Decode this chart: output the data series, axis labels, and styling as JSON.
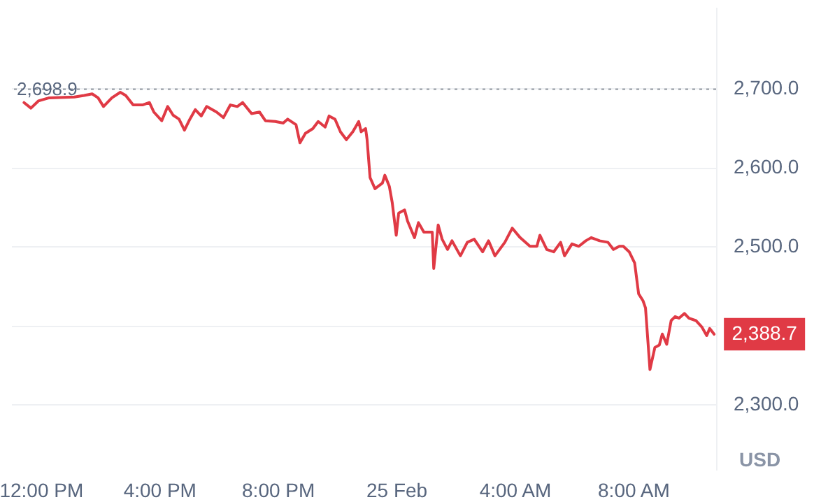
{
  "chart_data": {
    "type": "line",
    "ylabel": "USD",
    "x": [
      "--02-24T11:26",
      "--02-24T11:40",
      "--02-24T11:55",
      "--02-24T12:17",
      "--02-24T13:08",
      "--02-24T13:28",
      "--02-24T13:44",
      "--02-24T13:56",
      "--02-24T14:07",
      "--02-24T14:24",
      "--02-24T14:41",
      "--02-24T14:52",
      "--02-24T15:07",
      "--02-24T15:26",
      "--02-24T15:40",
      "--02-24T15:49",
      "--02-24T16:05",
      "--02-24T16:17",
      "--02-24T16:28",
      "--02-24T16:40",
      "--02-24T16:51",
      "--02-24T17:02",
      "--02-24T17:13",
      "--02-24T17:25",
      "--02-24T17:36",
      "--02-24T17:56",
      "--02-24T18:10",
      "--02-24T18:24",
      "--02-24T18:38",
      "--02-24T18:49",
      "--02-24T19:07",
      "--02-24T19:23",
      "--02-24T19:35",
      "--02-24T19:55",
      "--02-24T20:11",
      "--02-24T20:20",
      "--02-24T20:37",
      "--02-24T20:45",
      "--02-24T20:56",
      "--02-24T21:11",
      "--02-24T21:22",
      "--02-24T21:36",
      "--02-24T21:44",
      "--02-24T21:56",
      "--02-24T22:07",
      "--02-24T22:19",
      "--02-24T22:32",
      "--02-24T22:44",
      "--02-24T22:49",
      "--02-24T22:58",
      "--02-24T23:01",
      "--02-24T23:07",
      "--02-24T23:17",
      "--02-24T23:32",
      "--02-24T23:37",
      "--02-24T23:46",
      "--02-24T23:52",
      "--02-25T00:00",
      "--02-25T00:05",
      "--02-25T00:17",
      "--02-25T00:23",
      "--02-25T00:37",
      "--02-25T00:45",
      "--02-25T00:56",
      "--02-25T01:13",
      "--02-25T01:16",
      "--02-25T01:25",
      "--02-25T01:33",
      "--02-25T01:44",
      "--02-25T01:53",
      "--02-25T02:10",
      "--02-25T02:24",
      "--02-25T02:38",
      "--02-25T02:55",
      "--02-25T03:07",
      "--02-25T03:20",
      "--02-25T03:40",
      "--02-25T03:55",
      "--02-25T04:11",
      "--02-25T04:31",
      "--02-25T04:45",
      "--02-25T04:51",
      "--02-25T05:05",
      "--02-25T05:19",
      "--02-25T05:33",
      "--02-25T05:41",
      "--02-25T05:56",
      "--02-25T06:10",
      "--02-25T06:24",
      "--02-25T06:35",
      "--02-25T06:52",
      "--02-25T07:09",
      "--02-25T07:20",
      "--02-25T07:32",
      "--02-25T07:40",
      "--02-25T07:52",
      "--02-25T08:03",
      "--02-25T08:11",
      "--02-25T08:20",
      "--02-25T08:25",
      "--02-25T08:34",
      "--02-25T08:44",
      "--02-25T08:53",
      "--02-25T08:59",
      "--02-25T09:08",
      "--02-25T09:17",
      "--02-25T09:25",
      "--02-25T09:33",
      "--02-25T09:44",
      "--02-25T09:53",
      "--02-25T10:07",
      "--02-25T10:19",
      "--02-25T10:29",
      "--02-25T10:35",
      "--02-25T10:44"
    ],
    "series": [
      {
        "color": "#e03a45",
        "values": [
          2682,
          2675,
          2684,
          2688,
          2689,
          2691,
          2693,
          2688,
          2677,
          2688,
          2695,
          2691,
          2679,
          2679,
          2682,
          2670,
          2659,
          2677,
          2666,
          2661,
          2647,
          2661,
          2673,
          2665,
          2677,
          2670,
          2663,
          2679,
          2677,
          2682,
          2668,
          2670,
          2659,
          2658,
          2656,
          2661,
          2654,
          2631,
          2643,
          2649,
          2658,
          2651,
          2665,
          2661,
          2645,
          2635,
          2645,
          2658,
          2645,
          2649,
          2635,
          2587,
          2573,
          2580,
          2590,
          2576,
          2555,
          2514,
          2542,
          2546,
          2532,
          2511,
          2530,
          2518,
          2518,
          2472,
          2527,
          2509,
          2496,
          2507,
          2488,
          2505,
          2509,
          2493,
          2507,
          2488,
          2505,
          2523,
          2511,
          2500,
          2500,
          2514,
          2496,
          2493,
          2505,
          2488,
          2503,
          2500,
          2507,
          2511,
          2507,
          2505,
          2496,
          2500,
          2500,
          2493,
          2479,
          2440,
          2431,
          2422,
          2344,
          2372,
          2375,
          2389,
          2376,
          2406,
          2411,
          2409,
          2415,
          2409,
          2406,
          2398,
          2387,
          2396,
          2388.7
        ]
      }
    ],
    "xlim": [
      "--02-24T11:00",
      "--02-25T10:48"
    ],
    "xticks": [
      {
        "value": "--02-24T12:00",
        "label": "12:00 PM"
      },
      {
        "value": "--02-24T16:00",
        "label": "4:00 PM"
      },
      {
        "value": "--02-24T20:00",
        "label": "8:00 PM"
      },
      {
        "value": "--02-25T00:00",
        "label": "25 Feb"
      },
      {
        "value": "--02-25T04:00",
        "label": "4:00 AM"
      },
      {
        "value": "--02-25T08:00",
        "label": "8:00 AM"
      }
    ],
    "ylim": [
      2217,
      2803
    ],
    "yticks": [
      {
        "value": 2300,
        "label": "2,300.0"
      },
      {
        "value": 2400,
        "label": null
      },
      {
        "value": 2500,
        "label": "2,500.0"
      },
      {
        "value": 2600,
        "label": "2,600.0"
      },
      {
        "value": 2700,
        "label": "2,700.0"
      }
    ],
    "grid": "y",
    "ref_lines": [
      {
        "axis": "y",
        "value": 2698.9,
        "label": "2,698.9",
        "color": "#9aa0a8",
        "line_style": "dotted"
      }
    ],
    "annotations": [
      {
        "text": "2,388.7",
        "x": "--02-25T10:44",
        "y": 2388.7
      }
    ]
  }
}
